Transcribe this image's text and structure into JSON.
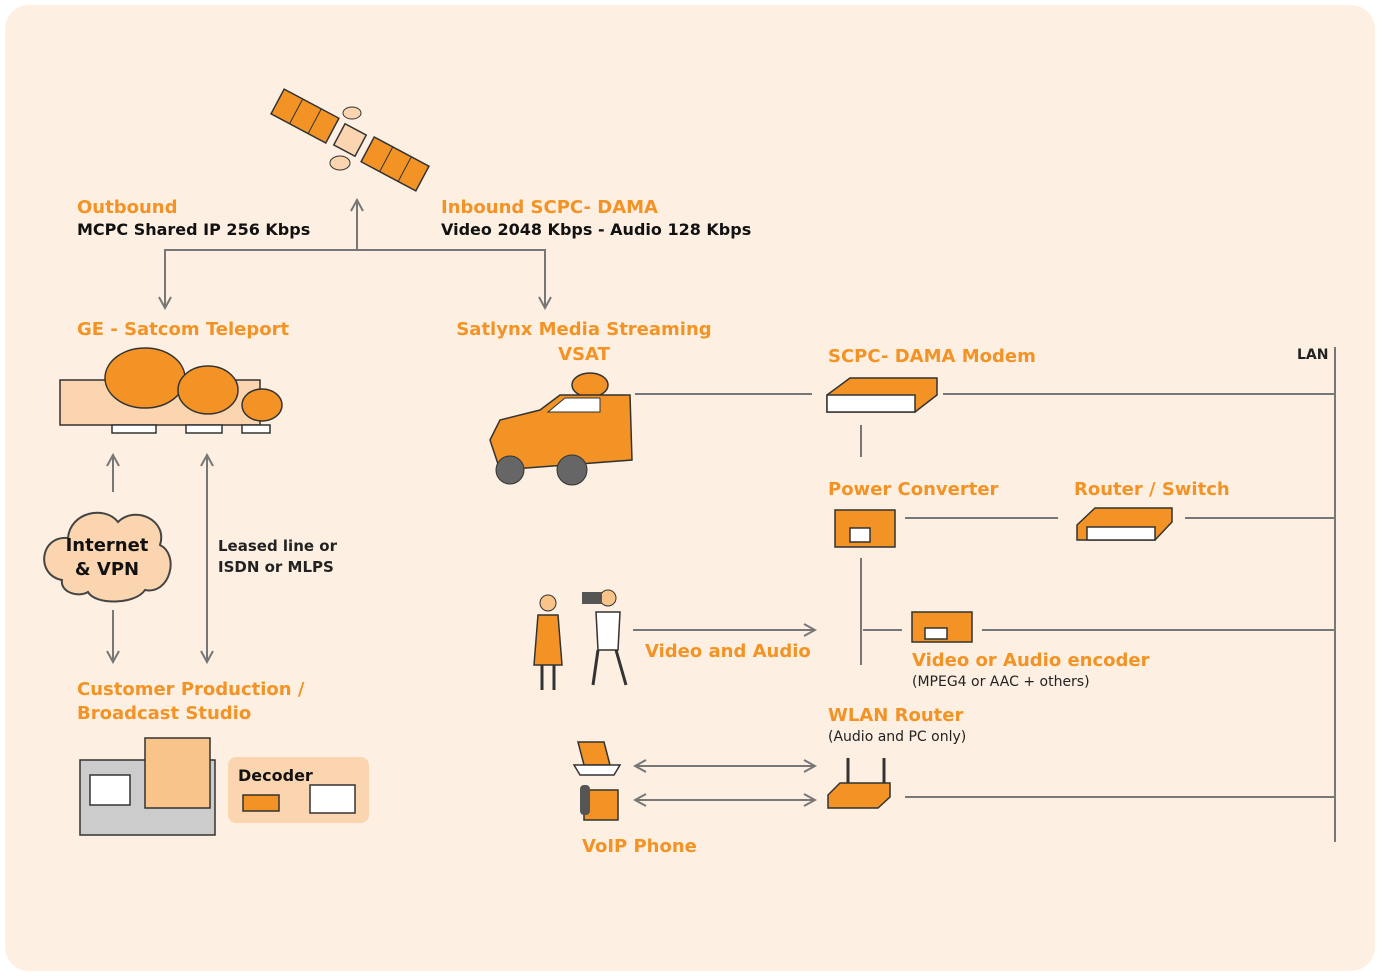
{
  "satellite": {
    "outbound": {
      "title": "Outbound",
      "detail": "MCPC Shared IP 256 Kbps"
    },
    "inbound": {
      "title": "Inbound SCPC- DAMA",
      "detail": "Video 2048 Kbps - Audio 128 Kbps"
    }
  },
  "teleport": {
    "title": "GE - Satcom Teleport"
  },
  "vsat": {
    "lines": [
      "Satlynx Media Streaming",
      "VSAT"
    ]
  },
  "modem": {
    "title": "SCPC- DAMA Modem"
  },
  "lan": {
    "title": "LAN"
  },
  "power_converter": {
    "title": "Power Converter"
  },
  "router_switch": {
    "title": "Router / Switch"
  },
  "internet": {
    "lines": [
      "Internet",
      "& VPN"
    ]
  },
  "leased_line": {
    "lines": [
      "Leased line or",
      "ISDN or MLPS"
    ]
  },
  "studio": {
    "lines": [
      "Customer Production /",
      "Broadcast Studio"
    ],
    "decoder": "Decoder"
  },
  "video_audio": {
    "title": "Video and Audio"
  },
  "encoder": {
    "title": "Video or Audio encoder",
    "detail": "(MPEG4 or AAC + others)"
  },
  "wlan_router": {
    "title": "WLAN Router",
    "detail": "(Audio and PC only)"
  },
  "voip": {
    "title": "VoIP Phone"
  }
}
